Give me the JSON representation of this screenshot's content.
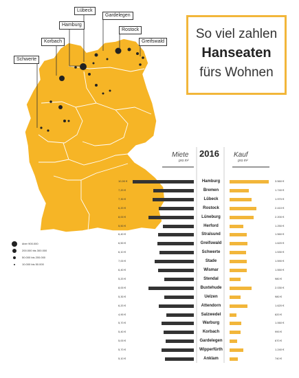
{
  "title": {
    "line1": "So viel zahlen",
    "line2": "Hanseaten",
    "line3": "fürs Wohnen"
  },
  "colors": {
    "map_fill": "#f6b526",
    "accent": "#f2b63a",
    "dark": "#333333"
  },
  "map_labels": [
    "Lübeck",
    "Gardelegen",
    "Hamburg",
    "Rostock",
    "Greifswald",
    "Korbach",
    "Schwerte"
  ],
  "table": {
    "miete_header": "Miete",
    "miete_unit": "pro m²",
    "year": "2016",
    "kauf_header": "Kauf",
    "kauf_unit": "pro m²"
  },
  "legend": [
    "über 900.000",
    "200.000 bis 300.000",
    "50.000 bis 200.000",
    "10.000 bis 50.000"
  ],
  "rows": [
    {
      "city": "Hamburg",
      "miete": "10,90 €",
      "miete_value": 10.9,
      "kauf": "3.560 €",
      "kauf_value": 3560
    },
    {
      "city": "Bremen",
      "miete": "7,20 €",
      "miete_value": 7.2,
      "kauf": "1.740 €",
      "kauf_value": 1740
    },
    {
      "city": "Lübeck",
      "miete": "7,30 €",
      "miete_value": 7.3,
      "kauf": "1.970 €",
      "kauf_value": 1970
    },
    {
      "city": "Rostock",
      "miete": "6,20 €",
      "miete_value": 6.2,
      "kauf": "2.410 €",
      "kauf_value": 2410
    },
    {
      "city": "Lüneburg",
      "miete": "8,00 €",
      "miete_value": 8.0,
      "kauf": "2.200 €",
      "kauf_value": 2200
    },
    {
      "city": "Herford",
      "miete": "5,50 €",
      "miete_value": 5.5,
      "kauf": "1.250 €",
      "kauf_value": 1250
    },
    {
      "city": "Stralsund",
      "miete": "6,40 €",
      "miete_value": 6.4,
      "kauf": "1.560 €",
      "kauf_value": 1560
    },
    {
      "city": "Greifswald",
      "miete": "6,50 €",
      "miete_value": 6.5,
      "kauf": "1.620 €",
      "kauf_value": 1620
    },
    {
      "city": "Schwerte",
      "miete": "6,10 €",
      "miete_value": 6.1,
      "kauf": "1.530 €",
      "kauf_value": 1530
    },
    {
      "city": "Stade",
      "miete": "7,00 €",
      "miete_value": 7.0,
      "kauf": "1.590 €",
      "kauf_value": 1590
    },
    {
      "city": "Wismar",
      "miete": "6,40 €",
      "miete_value": 6.4,
      "kauf": "1.550 €",
      "kauf_value": 1550
    },
    {
      "city": "Stendal",
      "miete": "5,20 €",
      "miete_value": 5.2,
      "kauf": "980 €",
      "kauf_value": 980
    },
    {
      "city": "Buxtehude",
      "miete": "8,00 €",
      "miete_value": 8.0,
      "kauf": "2.030 €",
      "kauf_value": 2030
    },
    {
      "city": "Uelzen",
      "miete": "5,30 €",
      "miete_value": 5.3,
      "kauf": "980 €",
      "kauf_value": 980
    },
    {
      "city": "Attendorn",
      "miete": "6,20 €",
      "miete_value": 6.2,
      "kauf": "1.620 €",
      "kauf_value": 1620
    },
    {
      "city": "Salzwedel",
      "miete": "4,90 €",
      "miete_value": 4.9,
      "kauf": "620 €",
      "kauf_value": 620
    },
    {
      "city": "Warburg",
      "miete": "5,70 €",
      "miete_value": 5.7,
      "kauf": "1.060 €",
      "kauf_value": 1060
    },
    {
      "city": "Korbach",
      "miete": "5,40 €",
      "miete_value": 5.4,
      "kauf": "990 €",
      "kauf_value": 990
    },
    {
      "city": "Gardelegen",
      "miete": "5,00 €",
      "miete_value": 5.0,
      "kauf": "670 €",
      "kauf_value": 670
    },
    {
      "city": "Wipperfürth",
      "miete": "5,70 €",
      "miete_value": 5.7,
      "kauf": "1.240 €",
      "kauf_value": 1240
    },
    {
      "city": "Anklam",
      "miete": "5,10 €",
      "miete_value": 5.1,
      "kauf": "740 €",
      "kauf_value": 740
    }
  ]
}
